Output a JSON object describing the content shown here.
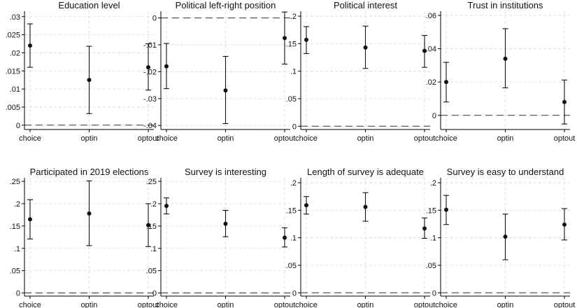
{
  "chart_data": [
    {
      "type": "scatter",
      "title": "Education level",
      "categories": [
        "choice",
        "optin",
        "optout"
      ],
      "estimates": [
        0.022,
        0.0125,
        0.016
      ],
      "ci_low": [
        0.016,
        0.0032,
        0.0097
      ],
      "ci_high": [
        0.028,
        0.0218,
        0.0225
      ],
      "yticks": [
        0,
        0.005,
        0.01,
        0.015,
        0.02,
        0.025,
        0.03
      ],
      "ytick_labels": [
        "0",
        ".005",
        ".01",
        ".015",
        ".02",
        ".025",
        ".03"
      ],
      "ylim": [
        -0.0012,
        0.0315
      ],
      "reference_line": 0,
      "grid": true
    },
    {
      "type": "scatter",
      "title": "Political left-right position",
      "categories": [
        "choice",
        "optin",
        "optout"
      ],
      "estimates": [
        -0.018,
        -0.027,
        -0.0075
      ],
      "ci_low": [
        -0.0263,
        -0.0393,
        -0.0172
      ],
      "ci_high": [
        -0.0095,
        -0.0143,
        0.0022
      ],
      "yticks": [
        0,
        -0.01,
        -0.02,
        -0.03,
        -0.04
      ],
      "ytick_labels": [
        "0",
        "-.01",
        "-.02",
        "-.03",
        "-.04"
      ],
      "ylim": [
        -0.0415,
        0.0025
      ],
      "reference_line": 0,
      "grid": true
    },
    {
      "type": "scatter",
      "title": "Political interest",
      "categories": [
        "choice",
        "optin",
        "optout"
      ],
      "estimates": [
        0.157,
        0.143,
        0.137
      ],
      "ci_low": [
        0.132,
        0.105,
        0.107
      ],
      "ci_high": [
        0.181,
        0.182,
        0.165
      ],
      "yticks": [
        0,
        0.05,
        0.1,
        0.15,
        0.2
      ],
      "ytick_labels": [
        "0",
        ".05",
        ".1",
        ".15",
        ".2"
      ],
      "ylim": [
        -0.006,
        0.209
      ],
      "reference_line": 0,
      "grid": true
    },
    {
      "type": "scatter",
      "title": "Trust in institutions",
      "categories": [
        "choice",
        "optin",
        "optout"
      ],
      "estimates": [
        0.02,
        0.034,
        0.008
      ],
      "ci_low": [
        0.008,
        0.0165,
        -0.0052
      ],
      "ci_high": [
        0.0318,
        0.052,
        0.0212
      ],
      "yticks": [
        0,
        0.02,
        0.04,
        0.06
      ],
      "ytick_labels": [
        "0",
        ".02",
        ".04",
        ".06"
      ],
      "ylim": [
        -0.0085,
        0.0625
      ],
      "reference_line": 0,
      "grid": true
    },
    {
      "type": "scatter",
      "title": "Participated in 2019 elections",
      "categories": [
        "choice",
        "optin",
        "optout"
      ],
      "estimates": [
        0.165,
        0.178,
        0.152
      ],
      "ci_low": [
        0.121,
        0.106,
        0.104
      ],
      "ci_high": [
        0.209,
        0.251,
        0.2
      ],
      "yticks": [
        0,
        0.05,
        0.1,
        0.15,
        0.2,
        0.25
      ],
      "ytick_labels": [
        "0",
        ".05",
        ".1",
        ".15",
        ".2",
        ".25"
      ],
      "ylim": [
        -0.007,
        0.258
      ],
      "reference_line": 0,
      "grid": true
    },
    {
      "type": "scatter",
      "title": "Survey is interesting",
      "categories": [
        "choice",
        "optin",
        "optout"
      ],
      "estimates": [
        0.195,
        0.155,
        0.124
      ],
      "ci_low": [
        0.177,
        0.126,
        0.103
      ],
      "ci_high": [
        0.213,
        0.185,
        0.146
      ],
      "yticks": [
        0,
        0.05,
        0.1,
        0.15,
        0.2,
        0.25
      ],
      "ytick_labels": [
        "0",
        ".05",
        ".1",
        ".15",
        ".2",
        ".25"
      ],
      "ylim": [
        -0.007,
        0.258
      ],
      "reference_line": 0,
      "grid": true
    },
    {
      "type": "scatter",
      "title": "Length of survey is adequate",
      "categories": [
        "choice",
        "optin",
        "optout"
      ],
      "estimates": [
        0.159,
        0.156,
        0.117
      ],
      "ci_low": [
        0.143,
        0.13,
        0.099
      ],
      "ci_high": [
        0.175,
        0.182,
        0.136
      ],
      "yticks": [
        0,
        0.05,
        0.1,
        0.15,
        0.2
      ],
      "ytick_labels": [
        "0",
        ".05",
        ".1",
        ".15",
        ".2"
      ],
      "ylim": [
        -0.006,
        0.209
      ],
      "reference_line": 0,
      "grid": true
    },
    {
      "type": "scatter",
      "title": "Survey is easy to understand",
      "categories": [
        "choice",
        "optin",
        "optout"
      ],
      "estimates": [
        0.151,
        0.102,
        0.124
      ],
      "ci_low": [
        0.124,
        0.06,
        0.096
      ],
      "ci_high": [
        0.177,
        0.143,
        0.153
      ],
      "yticks": [
        0,
        0.05,
        0.1,
        0.15,
        0.2
      ],
      "ytick_labels": [
        "0",
        ".05",
        ".1",
        ".15",
        ".2"
      ],
      "ylim": [
        -0.006,
        0.209
      ],
      "reference_line": 0,
      "grid": true
    }
  ]
}
